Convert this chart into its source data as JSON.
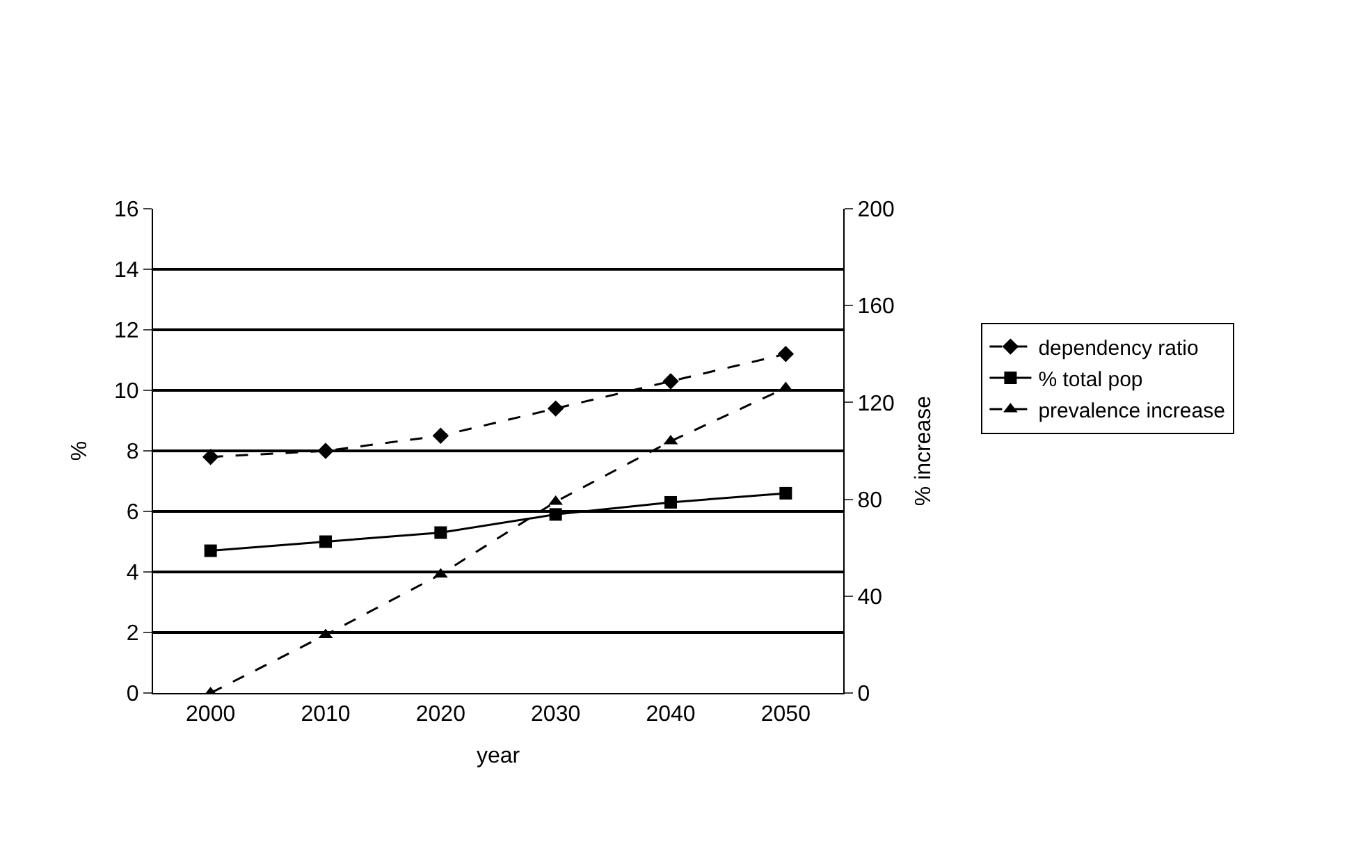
{
  "chart_data": {
    "type": "line",
    "xlabel": "year",
    "ylabel": "%",
    "y2label": "% increase",
    "categories": [
      "2000",
      "2010",
      "2020",
      "2030",
      "2040",
      "2050"
    ],
    "ylim": [
      0,
      16
    ],
    "yticks": [
      0,
      2,
      4,
      6,
      8,
      10,
      12,
      14,
      16
    ],
    "y2lim": [
      0,
      200
    ],
    "y2ticks": [
      0,
      40,
      80,
      120,
      160,
      200
    ],
    "grid": "y",
    "legend": "right",
    "series": [
      {
        "name": "dependency ratio",
        "color": "#000000",
        "marker": "diamond",
        "line_style": "dashed",
        "values": [
          7.8,
          8.0,
          8.5,
          9.4,
          10.3,
          11.2
        ]
      },
      {
        "name": "% total pop",
        "color": "#000000",
        "marker": "square",
        "line_style": "solid",
        "values": [
          4.7,
          5.0,
          5.3,
          5.9,
          6.3,
          6.6
        ]
      },
      {
        "name": "prevalence increase",
        "color": "#000000",
        "marker": "triangle",
        "line_style": "dashed",
        "axis": "y2",
        "values": [
          0,
          24,
          49,
          79,
          104,
          126
        ]
      }
    ]
  }
}
